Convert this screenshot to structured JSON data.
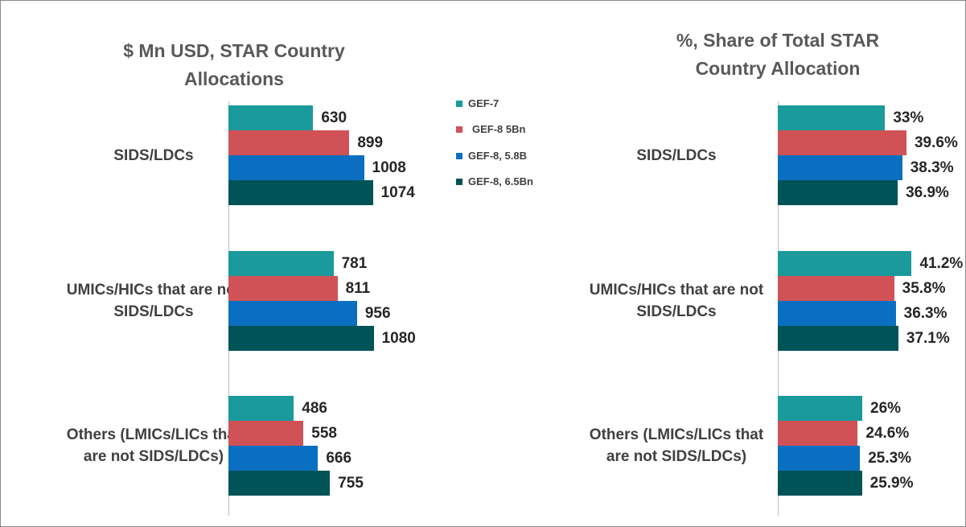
{
  "chart_data": [
    {
      "type": "bar",
      "orientation": "horizontal",
      "title": "$ Mn USD, STAR Country Allocations",
      "categories": [
        "SIDS/LDCs",
        "UMICs/HICs that are not SIDS/LDCs",
        "Others (LMICs/LICs that are not SIDS/LDCs)"
      ],
      "series": [
        {
          "name": "GEF-7",
          "color": "#1a9a9a",
          "values": [
            630,
            781,
            486
          ]
        },
        {
          "name": "GEF-8 5Bn",
          "color": "#d05257",
          "values": [
            899,
            811,
            558
          ]
        },
        {
          "name": "GEF-8, 5.8B",
          "color": "#0b6fc1",
          "values": [
            1008,
            956,
            666
          ]
        },
        {
          "name": "GEF-8, 6.5Bn",
          "color": "#005357",
          "values": [
            1074,
            1080,
            755
          ]
        }
      ]
    },
    {
      "type": "bar",
      "orientation": "horizontal",
      "title": "%, Share of Total STAR Country Allocation",
      "categories": [
        "SIDS/LDCs",
        "UMICs/HICs that are not SIDS/LDCs",
        "Others (LMICs/LICs that are not SIDS/LDCs)"
      ],
      "series": [
        {
          "color": "#1a9a9a",
          "values": [
            33,
            41.2,
            26
          ],
          "value_labels": [
            "33%",
            "41.2%",
            "26%"
          ]
        },
        {
          "color": "#d05257",
          "values": [
            39.6,
            35.8,
            24.6
          ],
          "value_labels": [
            "39.6%",
            "35.8%",
            "24.6%"
          ]
        },
        {
          "color": "#0b6fc1",
          "values": [
            38.3,
            36.3,
            25.3
          ],
          "value_labels": [
            "38.3%",
            "36.3%",
            "25.3%"
          ]
        },
        {
          "color": "#005357",
          "values": [
            36.9,
            37.1,
            25.9
          ],
          "value_labels": [
            "36.9%",
            "37.1%",
            "25.9%"
          ]
        }
      ]
    }
  ]
}
